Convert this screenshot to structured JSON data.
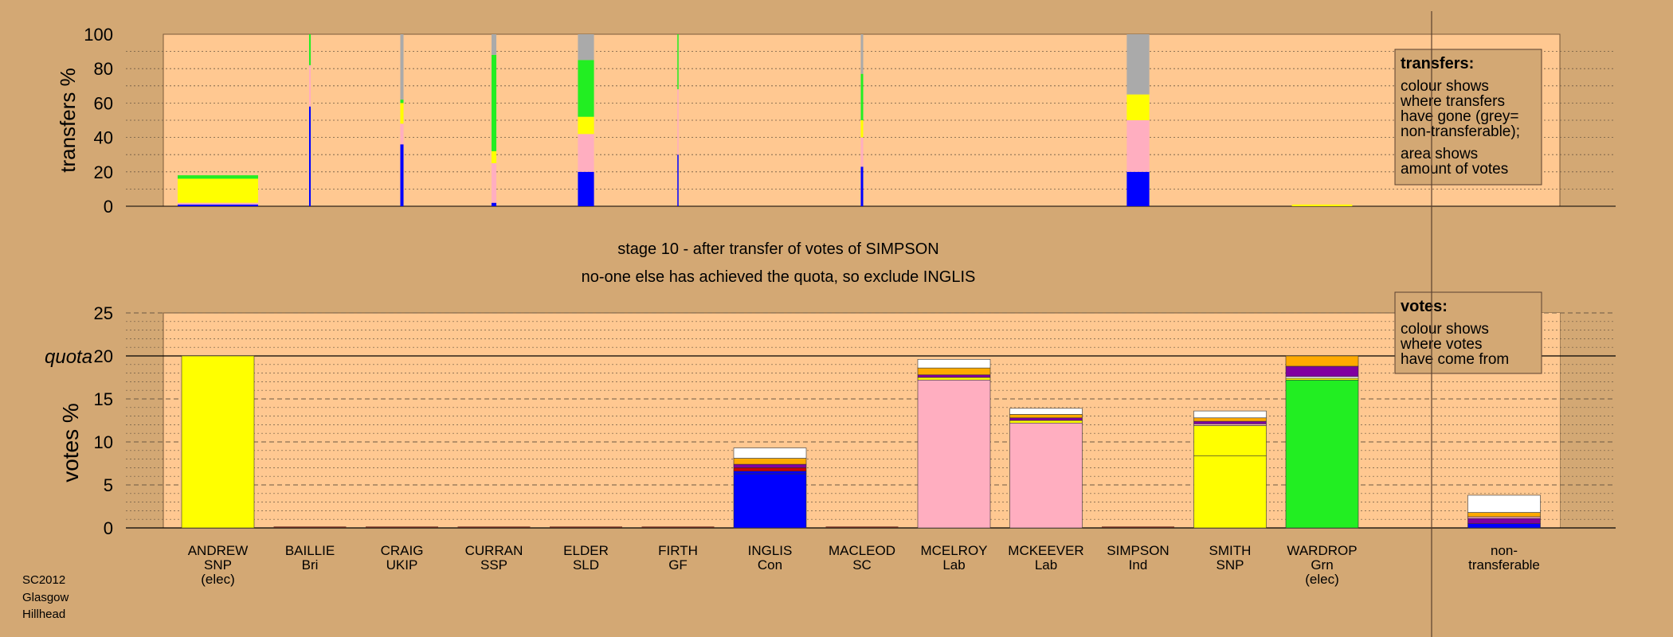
{
  "page": {
    "stage_caption": "stage 10 - after transfer of votes of SIMPSON",
    "status_caption": "no-one else has achieved the quota, so exclude INGLIS",
    "source_label": [
      "SC2012",
      "Glasgow",
      "Hillhead"
    ]
  },
  "colors": {
    "background": "#d3a874",
    "plot_area": "#ffc891",
    "SNP": "#ffff00",
    "Lab": "#ffaec0",
    "Con": "#0000ff",
    "Grn": "#22ee22",
    "LD": "#ffaa00",
    "nontransferable": "#aaaaaa",
    "white": "#ffffff",
    "purple": "#8000a0",
    "red": "#cc0000"
  },
  "chart_data": [
    {
      "type": "bar",
      "chart_id": "transfers",
      "ylabel": "transfers %",
      "ylim": [
        0,
        100
      ],
      "yticks": [
        0,
        20,
        40,
        60,
        80,
        100
      ],
      "candidates": [
        "ANDREW",
        "BAILLIE",
        "CRAIG",
        "CURRAN",
        "ELDER",
        "FIRTH",
        "INGLIS",
        "MACLEOD",
        "MCELROY",
        "MCKEEVER",
        "SIMPSON",
        "SMITH",
        "WARDROP"
      ],
      "bars": [
        {
          "candidate": "ANDREW",
          "width_share": 1.0,
          "segments": [
            {
              "color": "#0000ff",
              "value": 1
            },
            {
              "color": "#ffaec0",
              "value": 1
            },
            {
              "color": "#ffff00",
              "value": 14
            },
            {
              "color": "#22ee22",
              "value": 2
            }
          ]
        },
        {
          "candidate": "BAILLIE",
          "width_share": 0.02,
          "segments": [
            {
              "color": "#0000ff",
              "value": 58
            },
            {
              "color": "#ffaec0",
              "value": 24
            },
            {
              "color": "#22ee22",
              "value": 18
            }
          ]
        },
        {
          "candidate": "CRAIG",
          "width_share": 0.04,
          "segments": [
            {
              "color": "#0000ff",
              "value": 36
            },
            {
              "color": "#ffaec0",
              "value": 12
            },
            {
              "color": "#ffff00",
              "value": 12
            },
            {
              "color": "#22ee22",
              "value": 2
            },
            {
              "color": "#aaaaaa",
              "value": 38
            }
          ]
        },
        {
          "candidate": "CURRAN",
          "width_share": 0.06,
          "segments": [
            {
              "color": "#0000ff",
              "value": 2
            },
            {
              "color": "#ffaec0",
              "value": 23
            },
            {
              "color": "#ffff00",
              "value": 7
            },
            {
              "color": "#22ee22",
              "value": 56
            },
            {
              "color": "#aaaaaa",
              "value": 12
            }
          ]
        },
        {
          "candidate": "ELDER",
          "width_share": 0.2,
          "segments": [
            {
              "color": "#0000ff",
              "value": 20
            },
            {
              "color": "#ffaec0",
              "value": 22
            },
            {
              "color": "#ffff00",
              "value": 10
            },
            {
              "color": "#22ee22",
              "value": 33
            },
            {
              "color": "#aaaaaa",
              "value": 15
            }
          ]
        },
        {
          "candidate": "FIRTH",
          "width_share": 0.015,
          "segments": [
            {
              "color": "#0000ff",
              "value": 30
            },
            {
              "color": "#ffaec0",
              "value": 38
            },
            {
              "color": "#22ee22",
              "value": 32
            }
          ]
        },
        {
          "candidate": "MACLEOD",
          "width_share": 0.03,
          "segments": [
            {
              "color": "#0000ff",
              "value": 23
            },
            {
              "color": "#ffaec0",
              "value": 17
            },
            {
              "color": "#ffff00",
              "value": 10
            },
            {
              "color": "#22ee22",
              "value": 27
            },
            {
              "color": "#aaaaaa",
              "value": 23
            }
          ]
        },
        {
          "candidate": "SIMPSON",
          "width_share": 0.28,
          "segments": [
            {
              "color": "#0000ff",
              "value": 20
            },
            {
              "color": "#ffaec0",
              "value": 30
            },
            {
              "color": "#ffff00",
              "value": 15
            },
            {
              "color": "#aaaaaa",
              "value": 35
            }
          ]
        },
        {
          "candidate": "WARDROP",
          "width_share": 0.75,
          "segments": [
            {
              "color": "#ffff00",
              "value": 1
            }
          ]
        }
      ],
      "note_title": "transfers:",
      "note_text": [
        "colour shows",
        "where transfers",
        "have gone (grey=",
        "non-transferable);",
        "area shows",
        "amount of votes"
      ]
    },
    {
      "type": "bar",
      "chart_id": "votes",
      "ylabel": "votes %",
      "ylim": [
        0,
        25
      ],
      "yticks": [
        0,
        5,
        10,
        15,
        20,
        25
      ],
      "quota": 20,
      "quota_label": "quota",
      "categories": [
        {
          "name": "ANDREW",
          "party": "SNP",
          "note": "(elec)"
        },
        {
          "name": "BAILLIE",
          "party": "Bri",
          "note": ""
        },
        {
          "name": "CRAIG",
          "party": "UKIP",
          "note": ""
        },
        {
          "name": "CURRAN",
          "party": "SSP",
          "note": ""
        },
        {
          "name": "ELDER",
          "party": "SLD",
          "note": ""
        },
        {
          "name": "FIRTH",
          "party": "GF",
          "note": ""
        },
        {
          "name": "INGLIS",
          "party": "Con",
          "note": ""
        },
        {
          "name": "MACLEOD",
          "party": "SC",
          "note": ""
        },
        {
          "name": "MCELROY",
          "party": "Lab",
          "note": ""
        },
        {
          "name": "MCKEEVER",
          "party": "Lab",
          "note": ""
        },
        {
          "name": "SIMPSON",
          "party": "Ind",
          "note": ""
        },
        {
          "name": "SMITH",
          "party": "SNP",
          "note": ""
        },
        {
          "name": "WARDROP",
          "party": "Grn",
          "note": "(elec)"
        },
        {
          "name": "non-",
          "party": "transferable",
          "note": ""
        }
      ],
      "bars": [
        {
          "candidate": "ANDREW",
          "segments": [
            {
              "color": "#ffff00",
              "value": 20.0
            }
          ]
        },
        {
          "candidate": "BAILLIE",
          "segments": []
        },
        {
          "candidate": "CRAIG",
          "segments": []
        },
        {
          "candidate": "CURRAN",
          "segments": []
        },
        {
          "candidate": "ELDER",
          "segments": []
        },
        {
          "candidate": "FIRTH",
          "segments": []
        },
        {
          "candidate": "INGLIS",
          "segments": [
            {
              "color": "#0000ff",
              "value": 6.3
            },
            {
              "color": "#0000ff",
              "value": 0.3
            },
            {
              "color": "#cc0000",
              "value": 0.4
            },
            {
              "color": "#8000a0",
              "value": 0.4
            },
            {
              "color": "#ffaa00",
              "value": 0.7
            },
            {
              "color": "#ffffff",
              "value": 1.2
            }
          ]
        },
        {
          "candidate": "MACLEOD",
          "segments": []
        },
        {
          "candidate": "MCELROY",
          "segments": [
            {
              "color": "#ffaec0",
              "value": 17.2
            },
            {
              "color": "#ffff00",
              "value": 0.3
            },
            {
              "color": "#8000a0",
              "value": 0.3
            },
            {
              "color": "#ffaa00",
              "value": 0.8
            },
            {
              "color": "#ffffff",
              "value": 1.0
            }
          ]
        },
        {
          "candidate": "MCKEEVER",
          "segments": [
            {
              "color": "#ffaec0",
              "value": 12.2
            },
            {
              "color": "#ffff00",
              "value": 0.3
            },
            {
              "color": "#8000a0",
              "value": 0.3
            },
            {
              "color": "#ffaa00",
              "value": 0.4
            },
            {
              "color": "#ffffff",
              "value": 0.7
            }
          ]
        },
        {
          "candidate": "SIMPSON",
          "segments": []
        },
        {
          "candidate": "SMITH",
          "segments": [
            {
              "color": "#ffff00",
              "value": 8.4
            },
            {
              "color": "#ffff00",
              "value": 3.5
            },
            {
              "color": "#ffaec0",
              "value": 0.2
            },
            {
              "color": "#8000a0",
              "value": 0.3
            },
            {
              "color": "#ffaa00",
              "value": 0.4
            },
            {
              "color": "#ffffff",
              "value": 0.8
            }
          ]
        },
        {
          "candidate": "WARDROP",
          "segments": [
            {
              "color": "#22ee22",
              "value": 17.2
            },
            {
              "color": "#ffff00",
              "value": 0.2
            },
            {
              "color": "#ffffff",
              "value": 0.2
            },
            {
              "color": "#8000a0",
              "value": 1.2
            },
            {
              "color": "#ffaa00",
              "value": 1.2
            }
          ]
        },
        {
          "candidate": "non-transferable",
          "segments": [
            {
              "color": "#0000ff",
              "value": 0.5
            },
            {
              "color": "#8000a0",
              "value": 0.6
            },
            {
              "color": "#ffaec0",
              "value": 0.2
            },
            {
              "color": "#ffaa00",
              "value": 0.5
            },
            {
              "color": "#ffffff",
              "value": 2.0
            }
          ]
        }
      ],
      "note_title": "votes:",
      "note_text": [
        "colour shows",
        "where votes",
        "have come from"
      ]
    }
  ]
}
